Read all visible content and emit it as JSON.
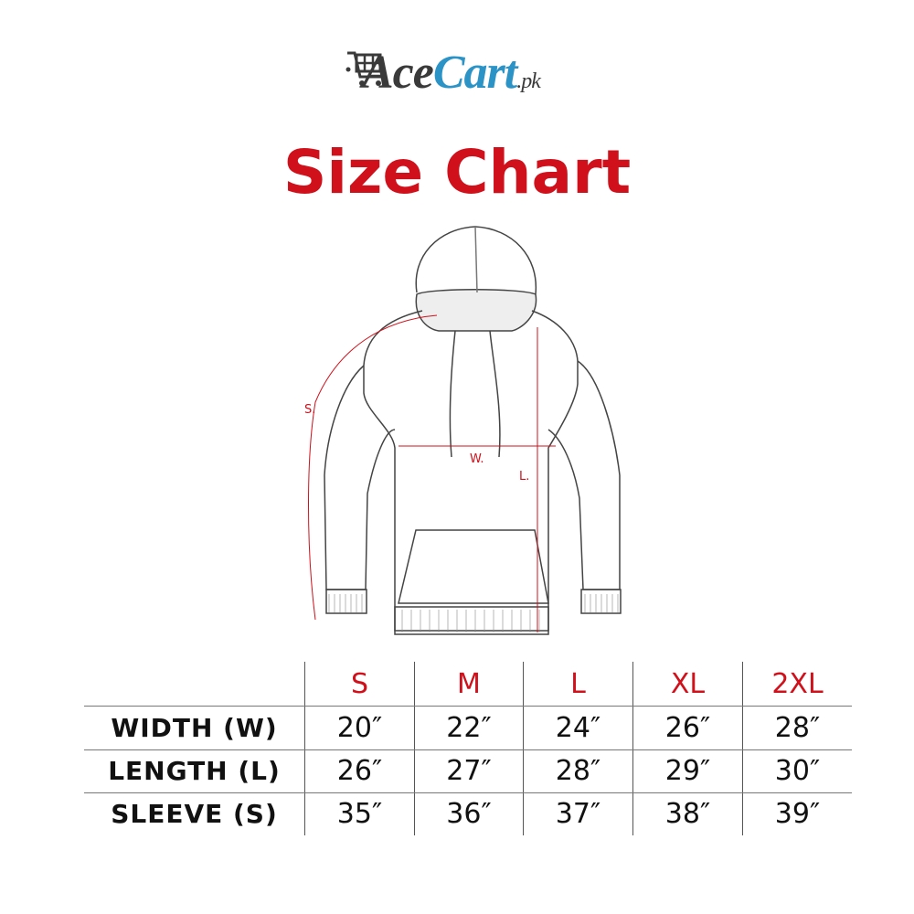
{
  "logo": {
    "part1": "Ace",
    "part2": "Cart",
    "part3": ".pk",
    "icon": "shopping-cart-icon"
  },
  "title": "Size Chart",
  "diagram": {
    "labels": {
      "sleeve": "S.",
      "width": "W.",
      "length": "L."
    }
  },
  "table": {
    "sizes": [
      "S",
      "M",
      "L",
      "XL",
      "2XL"
    ],
    "rows": [
      {
        "label": "WIDTH (W)",
        "values": [
          "20″",
          "22″",
          "24″",
          "26″",
          "28″"
        ]
      },
      {
        "label": "LENGTH (L)",
        "values": [
          "26″",
          "27″",
          "28″",
          "29″",
          "30″"
        ]
      },
      {
        "label": "SLEEVE (S)",
        "values": [
          "35″",
          "36″",
          "37″",
          "38″",
          "39″"
        ]
      }
    ]
  },
  "colors": {
    "accent": "#d0101a",
    "logo_blue": "#2b93c6",
    "logo_dark": "#3a3a3a"
  }
}
